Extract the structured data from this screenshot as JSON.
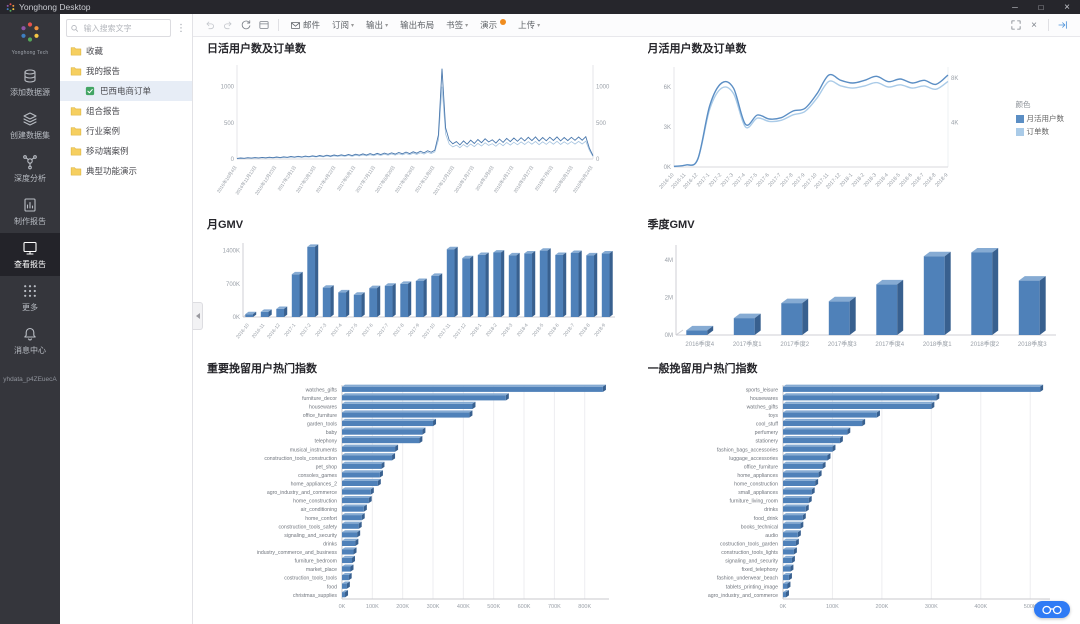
{
  "window": {
    "title": "Yonghong Desktop",
    "controls": {
      "minimize": "─",
      "maximize": "□",
      "close": "×"
    }
  },
  "sidebar": {
    "logo_text": "Yonghong Tech",
    "items": [
      {
        "name": "add-datasource",
        "icon": "database-add-icon",
        "label": "添加数据源"
      },
      {
        "name": "create-dataset",
        "icon": "dataset-icon",
        "label": "创建数据集"
      },
      {
        "name": "deep-analysis",
        "icon": "analysis-icon",
        "label": "深度分析"
      },
      {
        "name": "make-report",
        "icon": "report-edit-icon",
        "label": "制作报告"
      },
      {
        "name": "view-report",
        "icon": "report-view-icon",
        "label": "查看报告",
        "active": true
      },
      {
        "name": "more",
        "icon": "more-icon",
        "label": "更多"
      },
      {
        "name": "message-center",
        "icon": "bell-icon",
        "label": "消息中心"
      }
    ],
    "user": "yhdata_p4ZEuecA"
  },
  "tree": {
    "search_placeholder": "输入搜索文字",
    "items": [
      {
        "name": "favorites",
        "label": "收藏",
        "type": "folder",
        "indent": 0
      },
      {
        "name": "my-reports",
        "label": "我的报告",
        "type": "folder",
        "indent": 0
      },
      {
        "name": "brazil-ecommerce-orders",
        "label": "巴西电商订单",
        "type": "report",
        "indent": 1,
        "selected": true
      },
      {
        "name": "combined-reports",
        "label": "组合报告",
        "type": "folder",
        "indent": 0
      },
      {
        "name": "industry-cases",
        "label": "行业案例",
        "type": "folder",
        "indent": 0
      },
      {
        "name": "mobile-cases",
        "label": "移动端案例",
        "type": "folder",
        "indent": 0
      },
      {
        "name": "feature-demos",
        "label": "典型功能演示",
        "type": "folder",
        "indent": 0
      }
    ]
  },
  "toolbar": {
    "left_icons": [
      "undo-icon",
      "redo-icon",
      "refresh-icon",
      "reset-icon"
    ],
    "buttons": [
      {
        "name": "mail",
        "label": "邮件",
        "icon": "mail-icon"
      },
      {
        "name": "subscribe",
        "label": "订阅",
        "caret": true
      },
      {
        "name": "export",
        "label": "输出",
        "caret": true
      },
      {
        "name": "export-layout",
        "label": "输出布局"
      },
      {
        "name": "bookmark",
        "label": "书签",
        "caret": true
      },
      {
        "name": "present",
        "label": "演示",
        "badge": true
      },
      {
        "name": "upload",
        "label": "上传",
        "caret": true
      }
    ],
    "right_icons": [
      "fullscreen-icon",
      "close-icon",
      "collapse-panel-icon"
    ]
  },
  "colors": {
    "bar_front": "#4f81b9",
    "bar_top": "#86abd3",
    "bar_side": "#38608f",
    "accent_orange": "#f08c1e",
    "assistant_blue": "#2f7bf5"
  },
  "chart_data": [
    {
      "id": "c1",
      "type": "line",
      "title": "日活用户数及订单数",
      "y_ticks": [
        0,
        500,
        1000
      ],
      "y_max": 1300,
      "x_labels": [
        "2016年10月4日",
        "2016年11月13日",
        "2016年12月23日",
        "2017年2月1日",
        "2017年3月13日",
        "2017年4月22日",
        "2017年6月1日",
        "2017年7月11日",
        "2017年8月20日",
        "2017年9月29日",
        "2017年11月8日",
        "2017年12月18日",
        "2018年1月27日",
        "2018年3月8日",
        "2018年4月17日",
        "2018年5月27日",
        "2018年7月6日",
        "2018年8月15日",
        "2018年9月24日"
      ],
      "series": [
        {
          "name": "日活用户数",
          "color": "#4a78ad",
          "width": 0.9,
          "values": [
            8,
            14,
            10,
            18,
            12,
            20,
            15,
            22,
            16,
            25,
            18,
            28,
            20,
            30,
            24,
            34,
            26,
            38,
            28,
            40,
            32,
            44,
            35,
            48,
            38,
            52,
            40,
            55,
            44,
            58,
            46,
            62,
            48,
            66,
            52,
            70,
            55,
            74,
            58,
            78,
            62,
            82,
            65,
            86,
            68,
            90,
            72,
            95,
            75,
            100,
            80,
            108,
            85,
            115,
            92,
            122,
            330,
            1250,
            430,
            260,
            210,
            240,
            195,
            250,
            205,
            260,
            215,
            270,
            225,
            280,
            235,
            265,
            220,
            275,
            230,
            285,
            240,
            290,
            245,
            295,
            250,
            300,
            255,
            305,
            248,
            298,
            252,
            302,
            256,
            306,
            250,
            298,
            254,
            300,
            258,
            304,
            260,
            308,
            150,
            45
          ]
        },
        {
          "name": "订单数",
          "color": "#a6c4e0",
          "width": 0.8,
          "values": [
            6,
            11,
            8,
            14,
            10,
            16,
            12,
            18,
            13,
            20,
            14,
            22,
            16,
            24,
            19,
            27,
            21,
            30,
            22,
            32,
            26,
            35,
            28,
            38,
            30,
            42,
            32,
            44,
            35,
            46,
            37,
            50,
            38,
            53,
            42,
            56,
            44,
            59,
            46,
            62,
            50,
            66,
            52,
            69,
            54,
            72,
            58,
            76,
            60,
            80,
            64,
            86,
            68,
            92,
            74,
            98,
            264,
            1000,
            344,
            208,
            168,
            192,
            156,
            200,
            164,
            208,
            172,
            216,
            180,
            224,
            188,
            212,
            176,
            220,
            184,
            228,
            192,
            232,
            196,
            236,
            200,
            240,
            204,
            244,
            198,
            238,
            202,
            242,
            205,
            245,
            200,
            238,
            203,
            240,
            206,
            243,
            208,
            246,
            120,
            36
          ]
        }
      ]
    },
    {
      "id": "c2",
      "type": "line-smooth",
      "title": "月活用户数及订单数",
      "categories": [
        "2016-10",
        "2016-11",
        "2016-12",
        "2017-1",
        "2017-2",
        "2017-3",
        "2017-4",
        "2017-5",
        "2017-6",
        "2017-7",
        "2017-8",
        "2017-9",
        "2017-10",
        "2017-11",
        "2017-12",
        "2018-1",
        "2018-2",
        "2018-3",
        "2018-4",
        "2018-5",
        "2018-6",
        "2018-7",
        "2018-8",
        "2018-9"
      ],
      "y_left": {
        "ticks": [
          0,
          3,
          6
        ],
        "unit": "K",
        "max": 7.5
      },
      "y_right": {
        "ticks": [
          4,
          8
        ],
        "unit": "K",
        "max": 9
      },
      "legend": {
        "title": "颜色"
      },
      "series": [
        {
          "name": "月活用户数",
          "color": "#5b8ec4",
          "axis": "left",
          "values": [
            0.05,
            0.15,
            0.6,
            4.6,
            6.3,
            5.9,
            3.2,
            3.9,
            3.6,
            3.7,
            4.2,
            4.4,
            5.5,
            6.9,
            6.5,
            6.3,
            6.5,
            6.8,
            6.4,
            6.6,
            6.3,
            6.5,
            6.2,
            6.9
          ]
        },
        {
          "name": "订单数",
          "color": "#aacbe8",
          "axis": "right",
          "values": [
            0.05,
            0.18,
            0.7,
            5.2,
            7.1,
            6.6,
            3.6,
            4.4,
            4.1,
            4.2,
            4.7,
            5.0,
            6.2,
            7.7,
            7.3,
            7.1,
            7.3,
            7.6,
            7.2,
            7.4,
            7.1,
            7.3,
            7.0,
            7.7
          ]
        }
      ]
    },
    {
      "id": "c3",
      "type": "bar",
      "title": "月GMV",
      "rotate_labels": true,
      "categories": [
        "2016-10",
        "2016-11",
        "2016-12",
        "2017-1",
        "2017-2",
        "2017-3",
        "2017-4",
        "2017-5",
        "2017-6",
        "2017-7",
        "2017-8",
        "2017-9",
        "2017-10",
        "2017-11",
        "2017-12",
        "2018-1",
        "2018-2",
        "2018-3",
        "2018-4",
        "2018-5",
        "2018-6",
        "2018-7",
        "2018-8",
        "2018-9"
      ],
      "values": [
        60,
        110,
        170,
        900,
        1480,
        620,
        520,
        470,
        610,
        660,
        700,
        760,
        870,
        1430,
        1240,
        1310,
        1360,
        1300,
        1340,
        1400,
        1310,
        1350,
        1300,
        1340
      ],
      "y": {
        "ticks": [
          0,
          700,
          1400
        ],
        "unit": "K",
        "max": 1560
      }
    },
    {
      "id": "c4",
      "type": "bar",
      "title": "季度GMV",
      "wide": true,
      "categories": [
        "2016季度4",
        "2017季度1",
        "2017季度2",
        "2017季度3",
        "2017季度4",
        "2018季度1",
        "2018季度2",
        "2018季度3"
      ],
      "values": [
        0.25,
        0.9,
        1.7,
        1.8,
        2.7,
        4.2,
        4.4,
        2.9
      ],
      "y": {
        "ticks": [
          0,
          2,
          4
        ],
        "unit": "M",
        "max": 4.8
      }
    },
    {
      "id": "c5",
      "type": "hbar",
      "title": "重要挽留用户热门指数",
      "categories": [
        "watches_gifts",
        "furniture_decor",
        "housewares",
        "office_furniture",
        "garden_tools",
        "baby",
        "telephony",
        "musical_instruments",
        "construction_tools_construction",
        "pet_shop",
        "consoles_games",
        "home_appliances_2",
        "agro_industry_and_commerce",
        "home_construction",
        "air_conditioning",
        "home_confort",
        "construction_tools_safety",
        "signaling_and_security",
        "drinks",
        "industry_commerce_and_business",
        "furniture_bedroom",
        "market_place",
        "costruction_tools_tools",
        "food",
        "christmas_supplies"
      ],
      "values": [
        860,
        540,
        430,
        420,
        300,
        265,
        255,
        175,
        165,
        130,
        125,
        118,
        95,
        88,
        72,
        65,
        55,
        50,
        44,
        38,
        33,
        28,
        22,
        16,
        10
      ],
      "x": {
        "ticks": [
          0,
          100,
          200,
          300,
          400,
          500,
          600,
          700,
          800
        ],
        "unit": "K",
        "max": 880
      }
    },
    {
      "id": "c6",
      "type": "hbar",
      "title": "一般挽留用户热门指数",
      "categories": [
        "sports_leisure",
        "housewares",
        "watches_gifts",
        "toys",
        "cool_stuff",
        "perfumery",
        "stationery",
        "fashion_bags_accessories",
        "luggage_accessories",
        "office_furniture",
        "home_appliances",
        "home_construction",
        "small_appliances",
        "furniture_living_room",
        "drinks",
        "food_drink",
        "books_technical",
        "audio",
        "costruction_tools_garden",
        "construction_tools_lights",
        "signaling_and_security",
        "fixed_telephony",
        "fashion_underwear_beach",
        "tablets_printing_image",
        "agro_industry_and_commerce"
      ],
      "values": [
        520,
        310,
        300,
        190,
        160,
        130,
        115,
        100,
        90,
        80,
        72,
        65,
        58,
        52,
        46,
        40,
        35,
        30,
        26,
        22,
        18,
        15,
        12,
        9,
        6
      ],
      "x": {
        "ticks": [
          0,
          100,
          200,
          300,
          400,
          500
        ],
        "unit": "K",
        "max": 540
      }
    }
  ]
}
